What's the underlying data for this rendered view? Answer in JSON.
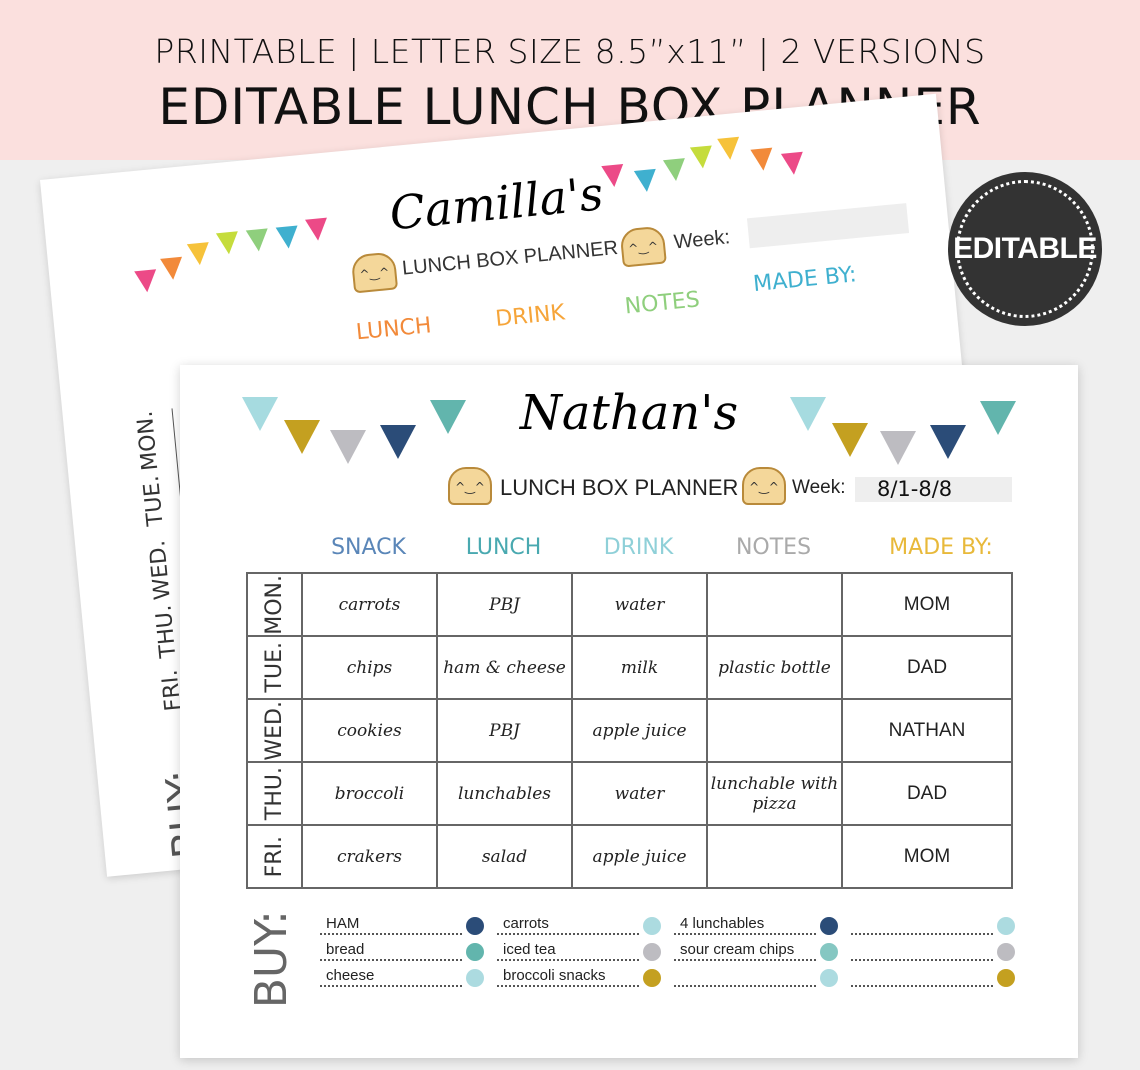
{
  "header": {
    "subtitle": "PRINTABLE | LETTER SIZE 8.5”x11” | 2 VERSIONS",
    "title": "EDITABLE LUNCH BOX PLANNER"
  },
  "badge": {
    "label": "EDITABLE"
  },
  "back_sheet": {
    "name": "Camilla's",
    "subtitle": "LUNCH BOX PLANNER",
    "week_label": "Week:",
    "columns": [
      "LUNCH",
      "DRINK",
      "NOTES",
      "MADE BY:"
    ],
    "days": [
      "MON.",
      "TUE.",
      "WED.",
      "THU.",
      "FRI."
    ],
    "buy_label": "BUY:",
    "bunting_colors": [
      "#ec4a87",
      "#f28a3a",
      "#f6c23a",
      "#c5dc3c",
      "#8fcf7d",
      "#3fb0cf",
      "#ec4a87"
    ]
  },
  "front_sheet": {
    "name": "Nathan's",
    "subtitle": "LUNCH BOX PLANNER",
    "week_label": "Week:",
    "week_value": "8/1-8/8",
    "columns": [
      {
        "label": "SNACK",
        "color": "#5a86b8"
      },
      {
        "label": "LUNCH",
        "color": "#49a9b0"
      },
      {
        "label": "DRINK",
        "color": "#8fd0d8"
      },
      {
        "label": "NOTES",
        "color": "#aaaaaa"
      },
      {
        "label": "MADE BY:",
        "color": "#e8b93a"
      }
    ],
    "rows": [
      {
        "day": "MON.",
        "snack": "carrots",
        "lunch": "PBJ",
        "drink": "water",
        "notes": "",
        "made_by": "MOM"
      },
      {
        "day": "TUE.",
        "snack": "chips",
        "lunch": "ham & cheese",
        "drink": "milk",
        "notes": "plastic bottle",
        "made_by": "DAD"
      },
      {
        "day": "WED.",
        "snack": "cookies",
        "lunch": "PBJ",
        "drink": "apple juice",
        "notes": "",
        "made_by": "NATHAN"
      },
      {
        "day": "THU.",
        "snack": "broccoli",
        "lunch": "lunchables",
        "drink": "water",
        "notes": "lunchable with pizza",
        "made_by": "DAD"
      },
      {
        "day": "FRI.",
        "snack": "crakers",
        "lunch": "salad",
        "drink": "apple juice",
        "notes": "",
        "made_by": "MOM"
      }
    ],
    "buy_label": "BUY:",
    "buy_columns": [
      [
        {
          "text": "HAM",
          "color": "#2b4c78"
        },
        {
          "text": "bread",
          "color": "#62b5ad"
        },
        {
          "text": "cheese",
          "color": "#acdbe0"
        }
      ],
      [
        {
          "text": "carrots",
          "color": "#acdbe0"
        },
        {
          "text": "iced tea",
          "color": "#bdbcc1"
        },
        {
          "text": "broccoli snacks",
          "color": "#c4a020"
        }
      ],
      [
        {
          "text": "4 lunchables",
          "color": "#2b4c78"
        },
        {
          "text": "sour cream chips",
          "color": "#85c7c2"
        },
        {
          "text": "",
          "color": "#acdbe0"
        }
      ],
      [
        {
          "text": "",
          "color": "#acdbe0"
        },
        {
          "text": "",
          "color": "#bdbcc1"
        },
        {
          "text": "",
          "color": "#c4a020"
        }
      ]
    ],
    "bunting_colors": [
      "#a6dbe0",
      "#c4a020",
      "#bdbcc1",
      "#2b4c78",
      "#62b5ad"
    ]
  }
}
